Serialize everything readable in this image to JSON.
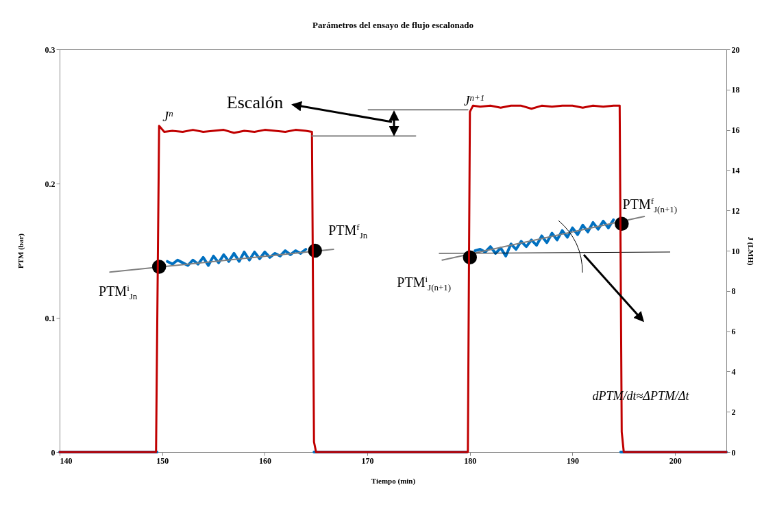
{
  "chart_data": {
    "type": "line",
    "title": "Parámetros del ensayo de flujo escalonado",
    "xlabel": "Tiempo (min)",
    "ylabel": "PTM (bar)",
    "y2label": "J (LMH)",
    "xlim": [
      140,
      205
    ],
    "xticks": [
      140,
      150,
      160,
      170,
      180,
      190,
      200
    ],
    "ylim": [
      0,
      0.3
    ],
    "yticks": [
      0,
      0.1,
      0.2,
      0.3
    ],
    "y2lim": [
      0,
      20
    ],
    "y2ticks": [
      0,
      2,
      4,
      6,
      8,
      10,
      12,
      14,
      16,
      18,
      20
    ],
    "grid": false,
    "marker": "none",
    "line_style": "solid",
    "series": [
      {
        "color": "#0070c0",
        "x": [
          140,
          149.5,
          149.8,
          150.5,
          151,
          151.5,
          152,
          152.5,
          153,
          153.5,
          154,
          154.5,
          155,
          155.5,
          156,
          156.5,
          157,
          157.5,
          158,
          158.5,
          159,
          159.5,
          160,
          160.5,
          161,
          161.5,
          162,
          162.5,
          163,
          163.5,
          164,
          164.6,
          164.8,
          179.7,
          179.9,
          180.5,
          181,
          181.5,
          182,
          182.5,
          183,
          183.5,
          184,
          184.5,
          185,
          185.5,
          186,
          186.5,
          187,
          187.5,
          188,
          188.5,
          189,
          189.5,
          190,
          190.5,
          191,
          191.5,
          192,
          192.5,
          193,
          193.5,
          194,
          194.6,
          194.7,
          205
        ],
        "values": [
          0,
          0,
          null,
          0.142,
          0.14,
          0.143,
          0.141,
          0.139,
          0.143,
          0.14,
          0.145,
          0.139,
          0.146,
          0.141,
          0.147,
          0.142,
          0.148,
          0.142,
          0.149,
          0.143,
          0.149,
          0.144,
          0.149,
          0.145,
          0.148,
          0.146,
          0.15,
          0.147,
          0.15,
          0.148,
          0.151,
          null,
          0,
          0,
          null,
          0.15,
          0.151,
          0.149,
          0.153,
          0.148,
          0.152,
          0.146,
          0.155,
          0.151,
          0.157,
          0.153,
          0.158,
          0.154,
          0.161,
          0.156,
          0.163,
          0.158,
          0.165,
          0.16,
          0.167,
          0.162,
          0.169,
          0.164,
          0.171,
          0.166,
          0.172,
          0.167,
          0.173,
          null,
          0,
          0
        ]
      },
      {
        "axis": "y2",
        "color": "#c00000",
        "x": [
          140,
          149.4,
          149.7,
          150.2,
          151,
          152,
          153,
          154,
          155,
          156,
          157,
          158,
          159,
          160,
          161,
          162,
          163,
          164,
          164.6,
          164.8,
          165,
          179.8,
          180,
          180.3,
          181,
          182,
          183,
          184,
          185,
          186,
          187,
          188,
          189,
          190,
          191,
          192,
          193,
          194,
          194.6,
          194.8,
          195,
          205
        ],
        "values": [
          0,
          0,
          16.2,
          15.9,
          15.95,
          15.9,
          16,
          15.9,
          15.95,
          16,
          15.85,
          15.95,
          15.9,
          16,
          15.95,
          15.9,
          16,
          15.95,
          15.9,
          0.5,
          0,
          0,
          16.9,
          17.2,
          17.15,
          17.2,
          17.1,
          17.2,
          17.2,
          17.05,
          17.2,
          17.15,
          17.2,
          17.2,
          17.1,
          17.2,
          17.15,
          17.2,
          17.2,
          1,
          0,
          0
        ]
      },
      {
        "type": "line",
        "color": "#808080",
        "x": [
          144.9,
          166.7
        ],
        "values": [
          0.134,
          0.151
        ]
      },
      {
        "type": "line",
        "color": "#808080",
        "x": [
          177.3,
          197
        ],
        "values": [
          0.143,
          0.1755
        ]
      },
      {
        "type": "line",
        "color": "#000000",
        "x": [
          177,
          199.5
        ],
        "values": [
          0.148,
          0.149
        ]
      },
      {
        "type": "line",
        "axis": "y2",
        "color": "#808080",
        "x": [
          170.1,
          179.8
        ],
        "values": [
          17,
          17
        ]
      },
      {
        "type": "line",
        "axis": "y2",
        "color": "#808080",
        "x": [
          164.6,
          174.7
        ],
        "values": [
          15.7,
          15.7
        ]
      },
      {
        "type": "scatter",
        "marker": "circle",
        "color": "#000000",
        "x": [
          149.7,
          164.9,
          180,
          194.8
        ],
        "values": [
          0.138,
          0.15,
          0.145,
          0.17
        ]
      }
    ],
    "annotations": [
      "Escalón",
      "J$^{n}$",
      "J$^{n+1}$",
      {
        "text": "PTM$^{i}$$_{Jn}$",
        "x": 149.7,
        "y": 0.138
      },
      {
        "text": "PTM$^{f}$$_{Jn}$",
        "x": 164.9,
        "y": 0.15
      },
      {
        "text": "PTM$^{i}$$_{J(n+1)}$",
        "x": 180,
        "y": 0.145
      },
      {
        "text": "PTM$^{f}$$_{J(n+1)}$",
        "x": 194.8,
        "y": 0.17
      },
      "dPTM/dt≈ΔPTM/Δt"
    ]
  }
}
